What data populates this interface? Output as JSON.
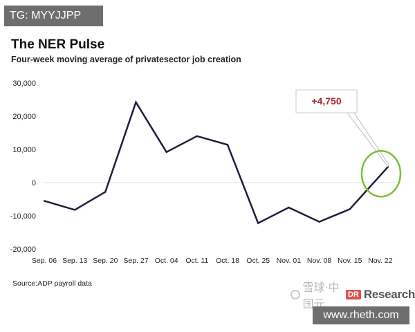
{
  "tag": "TG: MYYJJPP",
  "title": "The NER Pulse",
  "subtitle": "Four-week moving average of privatesector job creation",
  "source": "Source:ADP payroll data",
  "logo": {
    "icon": "eye-icon",
    "cn_text": "雪球·中国元",
    "mark": "DR",
    "name": "Research"
  },
  "watermark": "www.rheth.com",
  "callout": {
    "text": "+4,750",
    "color": "#a52a2a"
  },
  "colors": {
    "line": "#1a1f3a",
    "highlight_circle": "#7cbf3a",
    "grid": "#dddddd"
  },
  "chart_data": {
    "type": "line",
    "title": "The NER Pulse",
    "subtitle": "Four-week moving average of privatesector job creation",
    "categories": [
      "Sep. 06",
      "Sep. 13",
      "Sep. 20",
      "Sep. 27",
      "Oct. 04",
      "Oct. 11",
      "Oct. 18",
      "Oct. 25",
      "Nov. 01",
      "Nov. 08",
      "Nov. 15",
      "Nov. 22"
    ],
    "x_points": [
      "Sep. 06",
      "Sep. 13",
      "Sep. 20",
      "Sep. 27",
      "Oct. 04",
      "Oct. 11",
      "Oct. 18",
      "Oct. 25",
      "Nov. 01",
      "Nov. 08",
      "Nov. 15",
      "Nov. 22",
      "Nov. 22+"
    ],
    "values": [
      -5500,
      -8200,
      -2800,
      24200,
      9200,
      14000,
      11400,
      -12200,
      -7500,
      -11800,
      -8000,
      4750
    ],
    "yticks": [
      30000,
      20000,
      10000,
      0,
      -10000,
      -20000
    ],
    "ytick_labels": [
      "30,000",
      "20,000",
      "10,000",
      "0",
      "-10,000",
      "-20,000"
    ],
    "ylim": [
      -20000,
      30000
    ],
    "grid": false,
    "annotation": {
      "label": "+4,750",
      "value": 4750,
      "at": "Nov. 22"
    }
  }
}
